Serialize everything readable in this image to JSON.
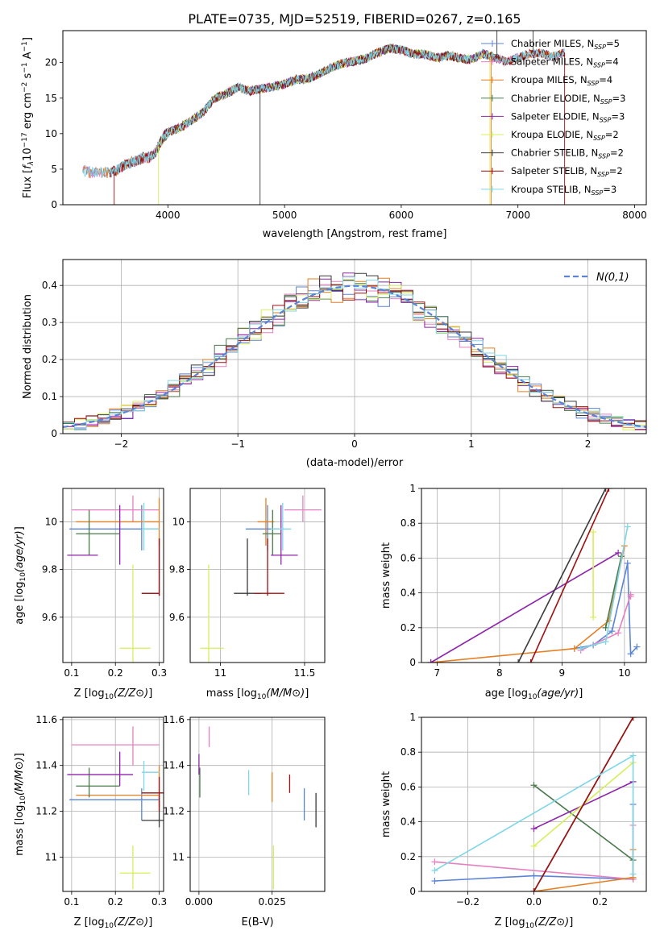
{
  "figure": {
    "title": "PLATE=0735, MJD=52519, FIBERID=0267, z=0.165"
  },
  "colors": {
    "Chabrier MILES": "#5b84d6",
    "Salpeter MILES": "#e680c0",
    "Kroupa MILES": "#e67e22",
    "Chabrier ELODIE": "#4a7a4a",
    "Salpeter ELODIE": "#8e24aa",
    "Kroupa ELODIE": "#d4ef5a",
    "Chabrier STELIB": "#3a3a3a",
    "Salpeter STELIB": "#a01010",
    "Kroupa STELIB": "#7fd6e6",
    "normal": "#5b84d6"
  },
  "chart_data": [
    {
      "id": "spectrum",
      "type": "line",
      "xlabel": "wavelength [Angstrom, rest frame]",
      "ylabel": "Flux [f_λ10^-17 erg cm^-2 s^-1 A^-1]",
      "xlim": [
        3100,
        8100
      ],
      "ylim": [
        0,
        24.5
      ],
      "xticks": [
        4000,
        5000,
        6000,
        7000,
        8000
      ],
      "yticks": [
        0,
        5,
        10,
        15,
        20
      ],
      "grid": false,
      "legend_position": "top-right",
      "x_range_data": [
        3270,
        7720
      ],
      "anchors": [
        [
          3270,
          4.7
        ],
        [
          3300,
          4.8
        ],
        [
          3350,
          4.5
        ],
        [
          3400,
          4.6
        ],
        [
          3450,
          4.5
        ],
        [
          3500,
          4.5
        ],
        [
          3550,
          4.7
        ],
        [
          3600,
          5.3
        ],
        [
          3650,
          5.8
        ],
        [
          3700,
          6.0
        ],
        [
          3750,
          6.3
        ],
        [
          3800,
          6.7
        ],
        [
          3850,
          6.7
        ],
        [
          3900,
          7.5
        ],
        [
          3950,
          9.2
        ],
        [
          4000,
          10.2
        ],
        [
          4100,
          10.8
        ],
        [
          4200,
          11.8
        ],
        [
          4300,
          13.0
        ],
        [
          4400,
          15.0
        ],
        [
          4500,
          15.6
        ],
        [
          4600,
          16.5
        ],
        [
          4700,
          16.0
        ],
        [
          4800,
          16.3
        ],
        [
          4900,
          16.6
        ],
        [
          5000,
          17.0
        ],
        [
          5100,
          17.6
        ],
        [
          5200,
          17.7
        ],
        [
          5300,
          18.4
        ],
        [
          5400,
          19.3
        ],
        [
          5500,
          19.9
        ],
        [
          5600,
          20.2
        ],
        [
          5700,
          20.6
        ],
        [
          5800,
          21.4
        ],
        [
          5900,
          22.0
        ],
        [
          6000,
          21.8
        ],
        [
          6100,
          21.2
        ],
        [
          6200,
          21.2
        ],
        [
          6300,
          20.7
        ],
        [
          6400,
          21.0
        ],
        [
          6500,
          20.6
        ],
        [
          6600,
          20.4
        ],
        [
          6700,
          21.3
        ],
        [
          6800,
          20.7
        ],
        [
          6900,
          20.1
        ],
        [
          7000,
          20.7
        ],
        [
          7100,
          21.2
        ],
        [
          7200,
          21.3
        ],
        [
          7300,
          20.8
        ],
        [
          7400,
          21.4
        ],
        [
          7500,
          23.0
        ],
        [
          7550,
          23.2
        ],
        [
          7600,
          22.6
        ],
        [
          7650,
          21.0
        ],
        [
          7700,
          21.5
        ],
        [
          7720,
          22.5
        ]
      ],
      "series": [
        {
          "name": "Chabrier MILES",
          "label": "Chabrier MILES, N",
          "sub": "SSP",
          "tail": "=5",
          "range": [
            3270,
            7400
          ]
        },
        {
          "name": "Salpeter MILES",
          "label": "Salpeter MILES, N",
          "sub": "SSP",
          "tail": "=4",
          "range": [
            3270,
            7400
          ]
        },
        {
          "name": "Kroupa MILES",
          "label": "Kroupa MILES, N",
          "sub": "SSP",
          "tail": "=4",
          "range": [
            3270,
            7400
          ]
        },
        {
          "name": "Chabrier ELODIE",
          "label": "Chabrier ELODIE, N",
          "sub": "SSP",
          "tail": "=3",
          "range": [
            3900,
            6800
          ]
        },
        {
          "name": "Salpeter ELODIE",
          "label": "Salpeter ELODIE, N",
          "sub": "SSP",
          "tail": "=3",
          "range": [
            3900,
            6800
          ]
        },
        {
          "name": "Kroupa ELODIE",
          "label": "Kroupa ELODIE, N",
          "sub": "SSP",
          "tail": "=2",
          "range": [
            3900,
            6800
          ]
        },
        {
          "name": "Chabrier STELIB",
          "label": "Chabrier STELIB, N",
          "sub": "SSP",
          "tail": "=2",
          "range": [
            3500,
            7400
          ]
        },
        {
          "name": "Salpeter STELIB",
          "label": "Salpeter STELIB, N",
          "sub": "SSP",
          "tail": "=2",
          "range": [
            3500,
            7400
          ]
        },
        {
          "name": "Kroupa STELIB",
          "label": "Kroupa STELIB, N",
          "sub": "SSP",
          "tail": "=3",
          "range": [
            3270,
            7400
          ]
        }
      ]
    },
    {
      "id": "residuals",
      "type": "line",
      "xlabel": "(data-model)/error",
      "ylabel": "Normed distribution",
      "xlim": [
        -2.5,
        2.5
      ],
      "ylim": [
        0,
        0.47
      ],
      "xticks": [
        -2,
        -1,
        0,
        1,
        2
      ],
      "yticks": [
        0.0,
        0.1,
        0.2,
        0.3,
        0.4
      ],
      "grid": true,
      "legend_position": "top-right",
      "legend": [
        {
          "label": "N(0,1)"
        }
      ],
      "bins": 50,
      "bin_range": [
        -2.5,
        2.5
      ],
      "series_names": [
        "Chabrier MILES",
        "Salpeter MILES",
        "Kroupa MILES",
        "Chabrier ELODIE",
        "Salpeter ELODIE",
        "Kroupa ELODIE",
        "Chabrier STELIB",
        "Salpeter STELIB",
        "Kroupa STELIB"
      ]
    },
    {
      "id": "age_vs_Z",
      "type": "scatter",
      "xlabel": "Z [log10(Z/Z⊙)]",
      "ylabel": "age  [log10(age/yr)]",
      "xlim": [
        0.08,
        0.31
      ],
      "ylim": [
        9.41,
        10.14
      ],
      "xticks": [
        0.1,
        0.2,
        0.3
      ],
      "yticks": [
        9.6,
        9.8,
        10.0
      ],
      "grid": true
    },
    {
      "id": "age_vs_mass",
      "type": "scatter",
      "xlabel": "mass [log10(M/M⊙)]",
      "ylabel": "",
      "xlim": [
        10.82,
        11.62
      ],
      "ylim": [
        9.41,
        10.14
      ],
      "xticks": [
        11.0,
        11.5
      ],
      "yticks": [
        9.6,
        9.8,
        10.0
      ],
      "grid": true
    },
    {
      "id": "mass_weight_vs_age",
      "type": "line",
      "xlabel": "age  [log10(age/yr)]",
      "ylabel": "mass weight",
      "xlim": [
        6.75,
        10.35
      ],
      "ylim": [
        0,
        1.0
      ],
      "xticks": [
        7,
        8,
        9,
        10
      ],
      "yticks": [
        0.0,
        0.2,
        0.4,
        0.6,
        0.8,
        1.0
      ],
      "grid": true
    },
    {
      "id": "mass_vs_Z",
      "type": "scatter",
      "xlabel": "Z [log10(Z/Z⊙)]",
      "ylabel": "mass [log10(M/M⊙)]",
      "xlim": [
        0.08,
        0.31
      ],
      "ylim": [
        10.85,
        11.61
      ],
      "xticks": [
        0.1,
        0.2,
        0.3
      ],
      "yticks": [
        11.0,
        11.2,
        11.4,
        11.6
      ],
      "grid": true
    },
    {
      "id": "mass_vs_EBV",
      "type": "scatter",
      "xlabel": "E(B-V)",
      "ylabel": "",
      "xlim": [
        -0.003,
        0.043
      ],
      "ylim": [
        10.85,
        11.61
      ],
      "xticks": [
        0.0,
        0.025
      ],
      "xticklabels": [
        "0.000",
        "0.025"
      ],
      "yticks": [
        11.0,
        11.2,
        11.4,
        11.6
      ],
      "grid": true
    },
    {
      "id": "mass_weight_vs_Z",
      "type": "line",
      "xlabel": "Z [log10(Z/Z⊙)]",
      "ylabel": "mass weight",
      "xlim": [
        -0.34,
        0.34
      ],
      "ylim": [
        0,
        1.0
      ],
      "xticks": [
        -0.2,
        0.0,
        0.2
      ],
      "xticklabels": [
        "−0.2",
        "0.0",
        "0.2"
      ],
      "yticks": [
        0.0,
        0.2,
        0.4,
        0.6,
        0.8,
        1.0
      ],
      "grid": true
    }
  ],
  "fits": [
    {
      "name": "Chabrier MILES",
      "Z": [
        0.095,
        0.3
      ],
      "Zerr": 0.0,
      "age": 9.97,
      "ageErr": 0.0,
      "mass": 11.25,
      "ebv": 0.036,
      "ebvErr": 0.05,
      "w_age": [
        [
          9.2,
          0.08
        ],
        [
          9.5,
          0.1
        ],
        [
          9.8,
          0.18
        ],
        [
          10.05,
          0.57
        ],
        [
          10.1,
          0.05
        ],
        [
          10.2,
          0.09
        ]
      ],
      "w_Z": [
        [
          -0.3,
          0.06
        ],
        [
          0.0,
          0.09
        ],
        [
          0.3,
          0.07
        ],
        [
          0.3,
          0.5
        ]
      ]
    },
    {
      "name": "Salpeter MILES",
      "Z": [
        0.1,
        0.3
      ],
      "age": 10.05,
      "mass": 11.49,
      "ebv": 0.004,
      "w_age": [
        [
          9.3,
          0.07
        ],
        [
          9.9,
          0.17
        ],
        [
          10.1,
          0.39
        ],
        [
          10.1,
          0.38
        ]
      ],
      "w_Z": [
        [
          -0.3,
          0.17
        ],
        [
          0.3,
          0.07
        ],
        [
          0.3,
          0.38
        ]
      ]
    },
    {
      "name": "Kroupa MILES",
      "Z": [
        0.11,
        0.3
      ],
      "age": 10.0,
      "mass": 11.27,
      "ebv": 0.025,
      "w_age": [
        [
          6.9,
          0.0
        ],
        [
          9.2,
          0.08
        ],
        [
          9.75,
          0.24
        ],
        [
          10.0,
          0.67
        ]
      ],
      "w_Z": [
        [
          0.0,
          0.0
        ],
        [
          0.3,
          0.08
        ],
        [
          0.3,
          0.24
        ]
      ]
    },
    {
      "name": "Chabrier ELODIE",
      "Z": [
        0.1,
        0.21
      ],
      "age": 9.95,
      "mass": 11.31,
      "ebv": 0.0,
      "w_age": [
        [
          9.7,
          0.2
        ],
        [
          9.95,
          0.61
        ]
      ],
      "w_Z": [
        [
          0.0,
          0.61
        ],
        [
          0.3,
          0.18
        ]
      ]
    },
    {
      "name": "Salpeter ELODIE",
      "Z": [
        0.09,
        0.24
      ],
      "age": 9.86,
      "mass": 11.36,
      "ebv": 0.0,
      "w_age": [
        [
          6.9,
          0.0
        ],
        [
          9.9,
          0.63
        ]
      ],
      "w_Z": [
        [
          0.0,
          0.36
        ],
        [
          0.3,
          0.63
        ]
      ]
    },
    {
      "name": "Kroupa ELODIE",
      "Z": [
        0.21,
        0.26
      ],
      "age": 9.47,
      "mass": 10.93,
      "ebv": 0.025,
      "w_age": [
        [
          9.5,
          0.75
        ],
        [
          9.5,
          0.26
        ]
      ],
      "w_Z": [
        [
          0.0,
          0.26
        ],
        [
          0.3,
          0.74
        ]
      ]
    },
    {
      "name": "Chabrier STELIB",
      "Z": [
        0.26,
        0.3
      ],
      "age": 9.7,
      "mass": 11.16,
      "ebv": 0.04,
      "w_age": [
        [
          8.3,
          0.0
        ],
        [
          9.7,
          1.0
        ]
      ],
      "w_Z": [
        [
          0.0,
          0.0
        ],
        [
          0.3,
          1.0
        ]
      ]
    },
    {
      "name": "Salpeter STELIB",
      "Z": [
        0.26,
        0.3
      ],
      "age": 9.7,
      "mass": 11.28,
      "ebv": 0.031,
      "w_age": [
        [
          8.5,
          0.0
        ],
        [
          9.75,
          1.0
        ]
      ],
      "w_Z": [
        [
          0.0,
          0.0
        ],
        [
          0.3,
          1.0
        ]
      ]
    },
    {
      "name": "Kroupa STELIB",
      "Z": [
        0.26,
        0.3
      ],
      "age": 9.97,
      "mass": 11.37,
      "ebv": 0.017,
      "w_age": [
        [
          9.3,
          0.08
        ],
        [
          9.7,
          0.12
        ],
        [
          10.05,
          0.78
        ]
      ],
      "w_Z": [
        [
          -0.3,
          0.12
        ],
        [
          0.3,
          0.78
        ],
        [
          0.3,
          0.1
        ]
      ]
    }
  ]
}
